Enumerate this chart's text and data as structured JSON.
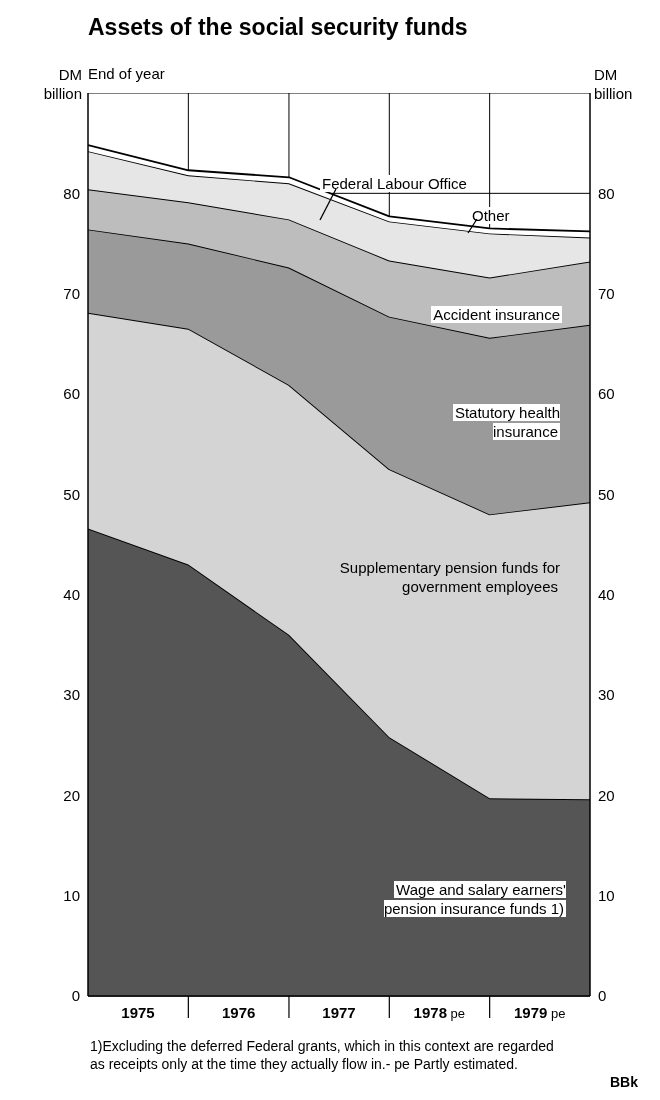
{
  "chart_data": {
    "type": "area",
    "stacked": true,
    "title": "Assets of the social security funds",
    "subtitle": "End of year",
    "ylabel": "DM billion",
    "y2label": "DM billion",
    "x": [
      "1974-12-31",
      "1975-12-31",
      "1976-12-31",
      "1977-12-31",
      "1978-12-31",
      "1979-12-31"
    ],
    "xlim": [
      "1974-12-31",
      "1979-12-31"
    ],
    "xticks": [
      {
        "value": "1975-07-01",
        "label": "1975"
      },
      {
        "value": "1975-12-31",
        "label": null
      },
      {
        "value": "1976-07-01",
        "label": "1976"
      },
      {
        "value": "1976-12-31",
        "label": null
      },
      {
        "value": "1977-07-01",
        "label": "1977"
      },
      {
        "value": "1977-12-31",
        "label": null
      },
      {
        "value": "1978-07-01",
        "label": "1978 pe"
      },
      {
        "value": "1978-12-31",
        "label": null
      },
      {
        "value": "1979-07-01",
        "label": "1979 pe"
      }
    ],
    "ylim": [
      0,
      90
    ],
    "yticks": [
      0,
      10,
      20,
      30,
      40,
      50,
      60,
      70,
      80
    ],
    "y2lim": [
      0,
      90
    ],
    "y2ticks": [
      0,
      10,
      20,
      30,
      40,
      50,
      60,
      70,
      80
    ],
    "grid": true,
    "series": [
      {
        "name": "Wage and salary earners' pension insurance funds 1)",
        "color": "#555555",
        "values": [
          46.6,
          43.0,
          36.0,
          25.8,
          19.7,
          19.6
        ]
      },
      {
        "name": "Supplementary pension funds for government employees",
        "color": "#d4d4d4",
        "values": [
          21.5,
          23.5,
          24.9,
          26.7,
          28.3,
          29.6
        ]
      },
      {
        "name": "Statutory health insurance",
        "color": "#9a9a9a",
        "values": [
          8.3,
          8.5,
          11.7,
          15.2,
          17.6,
          17.7
        ]
      },
      {
        "name": "Accident insurance",
        "color": "#bdbdbd",
        "values": [
          4.0,
          4.1,
          4.8,
          5.6,
          6.0,
          6.3
        ]
      },
      {
        "name": "Federal Labour Office",
        "color": "#e6e6e6",
        "values": [
          3.8,
          2.7,
          3.6,
          3.9,
          4.4,
          2.4
        ]
      },
      {
        "name": "Other",
        "color": "#ffffff",
        "values": [
          0.6,
          0.5,
          0.6,
          0.5,
          0.5,
          0.6
        ]
      }
    ],
    "annotations": [
      "1)Excluding the deferred Federal grants, which in this context are regarded as receipts only at the time they actually flow in.- pe Partly estimated.",
      "BBk"
    ]
  }
}
